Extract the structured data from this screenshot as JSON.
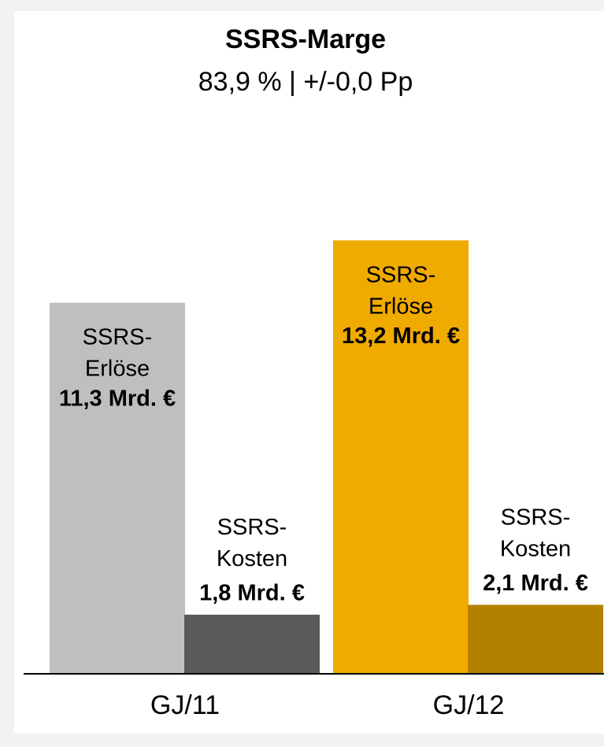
{
  "chart_data": {
    "type": "bar",
    "title": "SSRS-Marge",
    "subtitle": "83,9 % | +/-0,0 Pp",
    "categories": [
      "GJ/11",
      "GJ/12"
    ],
    "series": [
      {
        "name": "SSRS-Erlöse",
        "colors": [
          "#bfbfbf",
          "#f0ab00"
        ],
        "values": [
          11.3,
          13.2
        ],
        "value_labels": [
          "11,3 Mrd. €",
          "13,2 Mrd. €"
        ]
      },
      {
        "name": "SSRS-Kosten",
        "colors": [
          "#595959",
          "#b38000"
        ],
        "values": [
          1.8,
          2.1
        ],
        "value_labels": [
          "1,8 Mrd. €",
          "2,1 Mrd. €"
        ]
      }
    ],
    "ylim": [
      0,
      14
    ]
  }
}
